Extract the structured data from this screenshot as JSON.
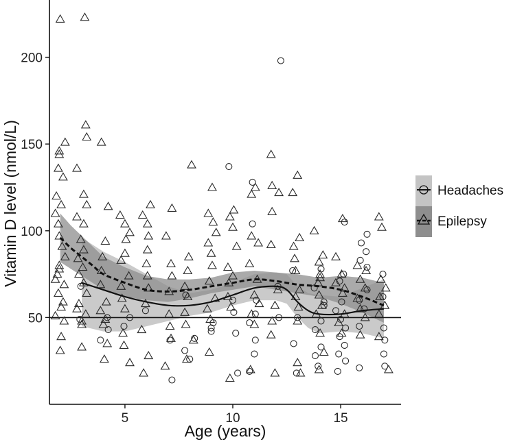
{
  "chart_data": {
    "type": "scatter",
    "title": "",
    "xlabel": "Age (years)",
    "ylabel": "Vitamin D level (nmol/L)",
    "xlim": [
      1.5,
      17.8
    ],
    "ylim": [
      0,
      233
    ],
    "x_ticks": [
      5,
      10,
      15
    ],
    "y_ticks": [
      50,
      100,
      150,
      200
    ],
    "reference_line": 50,
    "grid": false,
    "legend_position": "right",
    "series": [
      {
        "name": "Headaches",
        "marker": "circle",
        "line_style": "solid",
        "points": [
          [
            3,
            68
          ],
          [
            3,
            49
          ],
          [
            4,
            50
          ],
          [
            4,
            43
          ],
          [
            4,
            37
          ],
          [
            5,
            50
          ],
          [
            5,
            45
          ],
          [
            6,
            54
          ],
          [
            7,
            37
          ],
          [
            7,
            14
          ],
          [
            8,
            63
          ],
          [
            8,
            38
          ],
          [
            8,
            31
          ],
          [
            8,
            26
          ],
          [
            9,
            47
          ],
          [
            9,
            44
          ],
          [
            9,
            42
          ],
          [
            10,
            137
          ],
          [
            10,
            60
          ],
          [
            10,
            53
          ],
          [
            10,
            41
          ],
          [
            10,
            18
          ],
          [
            11,
            128
          ],
          [
            11,
            104
          ],
          [
            11,
            60
          ],
          [
            11,
            52
          ],
          [
            11,
            47
          ],
          [
            11,
            37
          ],
          [
            11,
            29
          ],
          [
            11,
            19
          ],
          [
            12,
            198
          ],
          [
            12,
            68
          ],
          [
            12,
            50
          ],
          [
            13,
            77
          ],
          [
            13,
            50
          ],
          [
            13,
            35
          ],
          [
            13,
            18
          ],
          [
            14,
            78
          ],
          [
            14,
            67
          ],
          [
            14,
            59
          ],
          [
            14,
            57
          ],
          [
            14,
            48
          ],
          [
            14,
            43
          ],
          [
            14,
            33
          ],
          [
            14,
            28
          ],
          [
            14,
            22
          ],
          [
            15,
            105
          ],
          [
            15,
            75
          ],
          [
            15,
            71
          ],
          [
            15,
            59
          ],
          [
            15,
            54
          ],
          [
            15,
            49
          ],
          [
            15,
            44
          ],
          [
            15,
            39
          ],
          [
            15,
            34
          ],
          [
            15,
            29
          ],
          [
            15,
            25
          ],
          [
            15,
            19
          ],
          [
            16,
            98
          ],
          [
            16,
            93
          ],
          [
            16,
            88
          ],
          [
            16,
            83
          ],
          [
            16,
            79
          ],
          [
            16,
            66
          ],
          [
            16,
            60
          ],
          [
            16,
            55
          ],
          [
            16,
            45
          ],
          [
            16,
            21
          ],
          [
            17,
            75
          ],
          [
            17,
            62
          ],
          [
            17,
            44
          ],
          [
            17,
            37
          ],
          [
            17,
            29
          ],
          [
            17,
            22
          ]
        ],
        "trend_x": [
          3,
          4,
          5,
          6,
          7,
          8,
          9,
          10,
          11,
          12,
          12.5,
          13,
          13.5,
          14,
          15,
          16,
          17
        ],
        "trend_y": [
          70,
          66,
          62,
          59,
          57,
          57,
          59,
          63,
          67,
          68,
          66,
          59,
          54,
          52,
          52,
          54,
          55
        ],
        "band_lower": [
          45,
          42,
          42,
          45,
          48,
          51,
          53,
          57,
          60,
          60,
          58,
          50,
          44,
          41,
          42,
          41,
          38
        ],
        "band_upper": [
          96,
          88,
          82,
          75,
          68,
          64,
          66,
          70,
          75,
          76,
          75,
          68,
          64,
          63,
          62,
          67,
          72
        ]
      },
      {
        "name": "Epilepsy",
        "marker": "triangle",
        "line_style": "dashed",
        "points": [
          [
            2,
            222
          ],
          [
            2,
            151
          ],
          [
            2,
            146
          ],
          [
            2,
            144
          ],
          [
            2,
            136
          ],
          [
            2,
            131
          ],
          [
            2,
            120
          ],
          [
            2,
            115
          ],
          [
            2,
            110
          ],
          [
            2,
            104
          ],
          [
            2,
            97
          ],
          [
            2,
            91
          ],
          [
            2,
            85
          ],
          [
            2,
            80
          ],
          [
            2,
            78
          ],
          [
            2,
            75
          ],
          [
            2,
            72
          ],
          [
            2,
            69
          ],
          [
            2,
            64
          ],
          [
            2,
            59
          ],
          [
            2,
            56
          ],
          [
            2,
            51
          ],
          [
            2,
            48
          ],
          [
            2,
            39
          ],
          [
            2,
            31
          ],
          [
            3,
            223
          ],
          [
            3,
            161
          ],
          [
            3,
            154
          ],
          [
            3,
            136
          ],
          [
            3,
            121
          ],
          [
            3,
            115
          ],
          [
            3,
            108
          ],
          [
            3,
            104
          ],
          [
            3,
            95
          ],
          [
            3,
            89
          ],
          [
            3,
            84
          ],
          [
            3,
            79
          ],
          [
            3,
            75
          ],
          [
            3,
            70
          ],
          [
            3,
            64
          ],
          [
            3,
            58
          ],
          [
            3,
            55
          ],
          [
            3,
            52
          ],
          [
            3,
            48
          ],
          [
            3,
            46
          ],
          [
            3,
            33
          ],
          [
            4,
            151
          ],
          [
            4,
            114
          ],
          [
            4,
            94
          ],
          [
            4,
            85
          ],
          [
            4,
            77
          ],
          [
            4,
            69
          ],
          [
            4,
            59
          ],
          [
            4,
            54
          ],
          [
            4,
            49
          ],
          [
            4,
            46
          ],
          [
            4,
            35
          ],
          [
            4,
            26
          ],
          [
            5,
            109
          ],
          [
            5,
            104
          ],
          [
            5,
            99
          ],
          [
            5,
            95
          ],
          [
            5,
            87
          ],
          [
            5,
            83
          ],
          [
            5,
            74
          ],
          [
            5,
            68
          ],
          [
            5,
            61
          ],
          [
            5,
            55
          ],
          [
            5,
            41
          ],
          [
            5,
            34
          ],
          [
            5,
            24
          ],
          [
            6,
            115
          ],
          [
            6,
            109
          ],
          [
            6,
            104
          ],
          [
            6,
            97
          ],
          [
            6,
            89
          ],
          [
            6,
            81
          ],
          [
            6,
            74
          ],
          [
            6,
            67
          ],
          [
            6,
            58
          ],
          [
            6,
            43
          ],
          [
            6,
            28
          ],
          [
            6,
            18
          ],
          [
            7,
            113
          ],
          [
            7,
            97
          ],
          [
            7,
            81
          ],
          [
            7,
            74
          ],
          [
            7,
            65
          ],
          [
            7,
            52
          ],
          [
            7,
            45
          ],
          [
            7,
            38
          ],
          [
            7,
            22
          ],
          [
            8,
            138
          ],
          [
            8,
            85
          ],
          [
            8,
            77
          ],
          [
            8,
            68
          ],
          [
            8,
            62
          ],
          [
            8,
            53
          ],
          [
            8,
            46
          ],
          [
            8,
            37
          ],
          [
            8,
            26
          ],
          [
            9,
            125
          ],
          [
            9,
            110
          ],
          [
            9,
            105
          ],
          [
            9,
            99
          ],
          [
            9,
            93
          ],
          [
            9,
            87
          ],
          [
            9,
            80
          ],
          [
            9,
            71
          ],
          [
            9,
            61
          ],
          [
            9,
            55
          ],
          [
            9,
            49
          ],
          [
            9,
            30
          ],
          [
            10,
            112
          ],
          [
            10,
            108
          ],
          [
            10,
            102
          ],
          [
            10,
            91
          ],
          [
            10,
            79
          ],
          [
            10,
            74
          ],
          [
            10,
            70
          ],
          [
            10,
            62
          ],
          [
            10,
            56
          ],
          [
            10,
            15
          ],
          [
            11,
            125
          ],
          [
            11,
            121
          ],
          [
            11,
            97
          ],
          [
            11,
            93
          ],
          [
            11,
            81
          ],
          [
            11,
            72
          ],
          [
            11,
            63
          ],
          [
            11,
            58
          ],
          [
            11,
            52
          ],
          [
            11,
            46
          ],
          [
            11,
            20
          ],
          [
            12,
            144
          ],
          [
            12,
            126
          ],
          [
            12,
            122
          ],
          [
            12,
            111
          ],
          [
            12,
            92
          ],
          [
            12,
            66
          ],
          [
            12,
            57
          ],
          [
            12,
            48
          ],
          [
            12,
            40
          ],
          [
            12,
            18
          ],
          [
            13,
            132
          ],
          [
            13,
            122
          ],
          [
            13,
            96
          ],
          [
            13,
            91
          ],
          [
            13,
            84
          ],
          [
            13,
            77
          ],
          [
            13,
            66
          ],
          [
            13,
            62
          ],
          [
            13,
            56
          ],
          [
            13,
            48
          ],
          [
            13,
            24
          ],
          [
            13,
            18
          ],
          [
            14,
            100
          ],
          [
            14,
            86
          ],
          [
            14,
            82
          ],
          [
            14,
            75
          ],
          [
            14,
            73
          ],
          [
            14,
            70
          ],
          [
            14,
            63
          ],
          [
            14,
            57
          ],
          [
            14,
            52
          ],
          [
            14,
            41
          ],
          [
            14,
            30
          ],
          [
            14,
            20
          ],
          [
            15,
            107
          ],
          [
            15,
            85
          ],
          [
            15,
            75
          ],
          [
            15,
            70
          ],
          [
            15,
            67
          ],
          [
            15,
            64
          ],
          [
            15,
            52
          ],
          [
            15,
            47
          ],
          [
            15,
            41
          ],
          [
            16,
            80
          ],
          [
            16,
            77
          ],
          [
            16,
            72
          ],
          [
            16,
            67
          ],
          [
            16,
            61
          ],
          [
            16,
            55
          ],
          [
            16,
            50
          ],
          [
            16,
            40
          ],
          [
            17,
            108
          ],
          [
            17,
            102
          ],
          [
            17,
            72
          ],
          [
            17,
            67
          ],
          [
            17,
            62
          ],
          [
            17,
            57
          ],
          [
            17,
            52
          ],
          [
            17,
            39
          ],
          [
            17,
            20
          ]
        ],
        "trend_x": [
          2,
          2.5,
          3,
          3.5,
          4,
          5,
          6,
          7,
          8,
          9,
          10,
          11,
          12,
          13,
          14,
          15,
          16,
          17
        ],
        "trend_y": [
          96,
          90,
          85,
          80,
          75,
          70,
          66,
          65,
          66,
          68,
          70,
          72,
          71,
          69,
          68,
          66,
          62,
          57
        ],
        "band_lower": [
          82,
          78,
          74,
          70,
          66,
          62,
          60,
          59,
          61,
          64,
          66,
          68,
          66,
          64,
          62,
          58,
          53,
          47
        ],
        "band_upper": [
          110,
          103,
          97,
          91,
          85,
          79,
          74,
          72,
          72,
          73,
          76,
          77,
          76,
          75,
          73,
          74,
          73,
          70
        ]
      }
    ]
  },
  "legend": {
    "items": [
      {
        "label": "Headaches",
        "marker": "circle",
        "line_style": "solid"
      },
      {
        "label": "Epilepsy",
        "marker": "triangle",
        "line_style": "dashed"
      }
    ]
  },
  "colors": {
    "band_headaches": "#c4c4c4",
    "band_epilepsy": "#8e8e8e",
    "line": "#111111",
    "marker": "#2a2a2a",
    "axis": "#111111"
  }
}
